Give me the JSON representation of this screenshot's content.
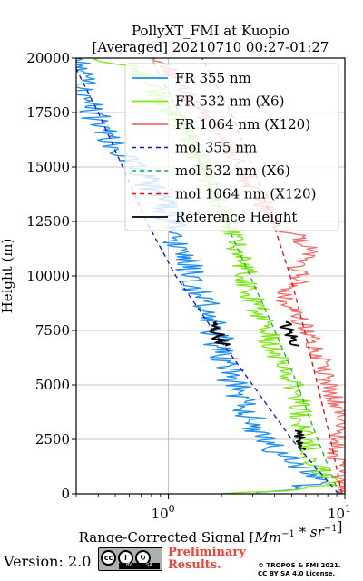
{
  "chart_data": {
    "type": "line",
    "title": [
      "PollyXT_FMI at Kuopio",
      "[Averaged] 20210710 00:27-01:27"
    ],
    "xlabel": "Range-Corrected Signal [Mm^-1 * sr^-1]",
    "ylabel": "Height (m)",
    "xscale": "log",
    "xlim": [
      0.3,
      10
    ],
    "ylim": [
      0,
      20000
    ],
    "xticks": [
      {
        "value": 1,
        "base": "10",
        "exp": "0"
      },
      {
        "value": 10,
        "base": "10",
        "exp": "1"
      }
    ],
    "yticks": [
      0,
      2500,
      5000,
      7500,
      10000,
      12500,
      15000,
      17500,
      20000
    ],
    "ytick_labels": [
      "0",
      "2500",
      "5000",
      "7500",
      "10000",
      "12500",
      "15000",
      "17500",
      "20000"
    ],
    "grid": true,
    "legend_position": "top-right",
    "series": [
      {
        "name": "FR 355 nm",
        "color": "#1f8ef0",
        "style": "solid",
        "jitter": 0.09,
        "points": [
          [
            3.0,
            0
          ],
          [
            4.5,
            200
          ],
          [
            6.8,
            500
          ],
          [
            7.3,
            700
          ],
          [
            6.3,
            1000
          ],
          [
            5.0,
            1500
          ],
          [
            3.9,
            2000
          ],
          [
            3.1,
            3000
          ],
          [
            2.8,
            4000
          ],
          [
            2.6,
            4500
          ],
          [
            2.2,
            5500
          ],
          [
            2.0,
            6500
          ],
          [
            1.85,
            7500
          ],
          [
            1.65,
            8500
          ],
          [
            1.45,
            9500
          ],
          [
            1.35,
            10000
          ],
          [
            1.2,
            11000
          ],
          [
            1.08,
            12000
          ],
          [
            0.98,
            13000
          ],
          [
            0.82,
            14000
          ],
          [
            0.65,
            15000
          ],
          [
            0.5,
            16000
          ],
          [
            0.42,
            17000
          ],
          [
            0.36,
            17500
          ],
          [
            0.32,
            18500
          ],
          [
            0.3,
            20000
          ]
        ]
      },
      {
        "name": "FR 532 nm (X6)",
        "color": "#7ee81a",
        "style": "solid",
        "jitter": 0.07,
        "points": [
          [
            2.2,
            0
          ],
          [
            5.5,
            200
          ],
          [
            7.9,
            400
          ],
          [
            8.2,
            700
          ],
          [
            6.6,
            1500
          ],
          [
            6.1,
            2500
          ],
          [
            5.7,
            3500
          ],
          [
            5.5,
            4200
          ],
          [
            5.2,
            5000
          ],
          [
            4.6,
            5400
          ],
          [
            4.2,
            6000
          ],
          [
            3.8,
            7000
          ],
          [
            3.4,
            8000
          ],
          [
            3.0,
            9000
          ],
          [
            2.75,
            10000
          ],
          [
            2.6,
            10700
          ],
          [
            2.45,
            11500
          ],
          [
            2.3,
            12000
          ],
          [
            2.1,
            12600
          ],
          [
            1.8,
            13800
          ],
          [
            1.55,
            15000
          ],
          [
            1.35,
            16000
          ],
          [
            1.15,
            17000
          ],
          [
            0.95,
            18000
          ],
          [
            0.75,
            19000
          ],
          [
            0.55,
            19700
          ],
          [
            0.4,
            20000
          ]
        ]
      },
      {
        "name": "FR 1064 nm (X120)",
        "color": "#f07070",
        "style": "solid",
        "jitter": 0.06,
        "points": [
          [
            9.5,
            0
          ],
          [
            9.8,
            800
          ],
          [
            9.2,
            1500
          ],
          [
            9.0,
            2000
          ],
          [
            9.2,
            2500
          ],
          [
            9.8,
            3000
          ],
          [
            9.6,
            3800
          ],
          [
            9.0,
            4200
          ],
          [
            8.2,
            5000
          ],
          [
            7.2,
            6500
          ],
          [
            6.2,
            7500
          ],
          [
            5.0,
            8500
          ],
          [
            4.3,
            9200
          ],
          [
            5.8,
            9800
          ],
          [
            5.2,
            10500
          ],
          [
            6.6,
            11000
          ],
          [
            5.5,
            11800
          ],
          [
            4.4,
            12200
          ],
          [
            3.8,
            12800
          ],
          [
            3.5,
            13300
          ],
          [
            3.0,
            14000
          ],
          [
            2.6,
            14800
          ],
          [
            2.2,
            15800
          ],
          [
            1.9,
            16800
          ],
          [
            1.55,
            17500
          ],
          [
            1.3,
            18200
          ],
          [
            1.1,
            19000
          ],
          [
            0.95,
            19700
          ],
          [
            0.8,
            20000
          ]
        ]
      },
      {
        "name": "mol 355 nm",
        "color": "#1010d0",
        "style": "dashed",
        "points": [
          [
            9.2,
            0
          ],
          [
            5.0,
            2500
          ],
          [
            3.0,
            5000
          ],
          [
            1.8,
            7500
          ],
          [
            1.1,
            10000
          ],
          [
            0.75,
            12500
          ],
          [
            0.55,
            15000
          ],
          [
            0.4,
            17500
          ],
          [
            0.3,
            19500
          ]
        ]
      },
      {
        "name": "mol 532 nm (X6)",
        "color": "#20b020",
        "style": "dashed",
        "points": [
          [
            9.3,
            0
          ],
          [
            7.0,
            2500
          ],
          [
            5.4,
            5000
          ],
          [
            4.0,
            7500
          ],
          [
            2.9,
            10000
          ],
          [
            2.1,
            12500
          ],
          [
            1.55,
            15000
          ],
          [
            1.15,
            17500
          ],
          [
            0.8,
            20000
          ]
        ]
      },
      {
        "name": "mol 1064 nm (X120)",
        "color": "#e01010",
        "style": "dashed",
        "points": [
          [
            9.6,
            0
          ],
          [
            8.3,
            2500
          ],
          [
            7.0,
            5000
          ],
          [
            5.9,
            7500
          ],
          [
            4.9,
            10000
          ],
          [
            3.9,
            12500
          ],
          [
            3.0,
            15000
          ],
          [
            2.25,
            17500
          ],
          [
            1.55,
            20000
          ]
        ]
      },
      {
        "name": "Reference Height",
        "color": "#000000",
        "style": "solid",
        "segments": [
          {
            "jitter": 0.045,
            "points": [
              [
                1.75,
                7900
              ],
              [
                1.85,
                7500
              ],
              [
                2.0,
                7000
              ],
              [
                2.1,
                6800
              ]
            ]
          },
          {
            "jitter": 0.045,
            "points": [
              [
                4.5,
                7900
              ],
              [
                4.8,
                7400
              ],
              [
                5.2,
                7000
              ],
              [
                5.5,
                6800
              ]
            ]
          },
          {
            "jitter": 0.03,
            "points": [
              [
                5.4,
                2900
              ],
              [
                5.7,
                2400
              ],
              [
                5.9,
                2000
              ]
            ]
          }
        ]
      }
    ]
  },
  "footer": {
    "version": "Version: 2.0",
    "preliminary": [
      "Preliminary",
      "Results."
    ],
    "copyright": [
      "© TROPOS & FMI 2021.",
      "CC BY SA 4.0 License."
    ],
    "cc_labels": [
      "cc",
      "BY",
      "SA"
    ]
  }
}
